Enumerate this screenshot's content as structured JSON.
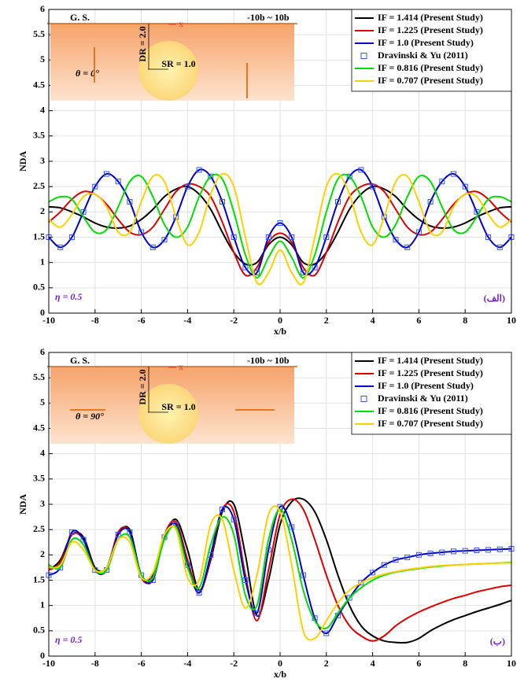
{
  "chart_data": [
    {
      "type": "line",
      "xlabel": "x/b",
      "ylabel": "NDA",
      "annotation": "η = 0.5",
      "panel_label": "(الف)",
      "inset": {
        "ground": "G. S.",
        "range": "-10b ~ 10b",
        "depth": "DR = 2.0",
        "radius": "SR = 1.0",
        "angle": "θ = 0°",
        "axis": "x"
      },
      "xlim": [
        -10,
        10
      ],
      "ylim": [
        0,
        6
      ],
      "xticks": [
        -10,
        -8,
        -6,
        -4,
        -2,
        0,
        2,
        4,
        6,
        8,
        10
      ],
      "yticks": [
        0,
        0.5,
        1,
        1.5,
        2,
        2.5,
        3,
        3.5,
        4,
        4.5,
        5,
        5.5,
        6
      ],
      "grid": true,
      "legend": "upper right",
      "x": [
        -10,
        -9.5,
        -9,
        -8.5,
        -8,
        -7.5,
        -7,
        -6.5,
        -6,
        -5.5,
        -5,
        -4.5,
        -4,
        -3.5,
        -3,
        -2.5,
        -2,
        -1.5,
        -1,
        -0.5,
        0,
        0.5,
        1,
        1.5,
        2,
        2.5,
        3,
        3.5,
        4,
        4.5,
        5,
        5.5,
        6,
        6.5,
        7,
        7.5,
        8,
        8.5,
        9,
        9.5,
        10
      ],
      "series": [
        {
          "name": "IF = 1.414 (Present Study)",
          "color": "#000000",
          "style": "line",
          "values": [
            2.1,
            2.08,
            2.0,
            1.9,
            1.78,
            1.7,
            1.68,
            1.72,
            1.85,
            2.05,
            2.3,
            2.45,
            2.5,
            2.35,
            2.05,
            1.6,
            1.2,
            0.97,
            1.0,
            1.35,
            1.5,
            1.35,
            1.0,
            0.97,
            1.2,
            1.6,
            2.05,
            2.35,
            2.5,
            2.45,
            2.3,
            2.05,
            1.85,
            1.72,
            1.68,
            1.7,
            1.78,
            1.9,
            2.0,
            2.08,
            2.1
          ]
        },
        {
          "name": "IF = 1.225 (Present Study)",
          "color": "#e00000",
          "style": "line",
          "values": [
            1.8,
            2.0,
            2.25,
            2.4,
            2.35,
            2.15,
            1.85,
            1.6,
            1.55,
            1.7,
            2.05,
            2.4,
            2.55,
            2.5,
            2.3,
            1.8,
            1.2,
            0.75,
            0.9,
            1.4,
            1.58,
            1.4,
            0.9,
            0.75,
            1.2,
            1.8,
            2.3,
            2.5,
            2.55,
            2.4,
            2.05,
            1.7,
            1.55,
            1.6,
            1.85,
            2.15,
            2.35,
            2.4,
            2.25,
            2.0,
            1.8
          ]
        },
        {
          "name": "IF = 1.0 (Present Study)",
          "color": "#0000cc",
          "style": "line",
          "values": [
            1.5,
            1.3,
            1.5,
            2.0,
            2.5,
            2.75,
            2.6,
            2.2,
            1.6,
            1.3,
            1.45,
            1.9,
            2.5,
            2.83,
            2.7,
            2.2,
            1.5,
            0.9,
            0.8,
            1.5,
            1.78,
            1.5,
            0.8,
            0.9,
            1.5,
            2.2,
            2.7,
            2.83,
            2.5,
            1.9,
            1.45,
            1.3,
            1.6,
            2.2,
            2.6,
            2.75,
            2.5,
            2.0,
            1.5,
            1.3,
            1.5
          ]
        },
        {
          "name": "Dravinski & Yu (2011)",
          "color": "#3355ff",
          "style": "square",
          "values": [
            1.5,
            1.3,
            1.5,
            2.0,
            2.5,
            2.75,
            2.6,
            2.2,
            1.6,
            1.3,
            1.45,
            1.9,
            2.5,
            2.83,
            2.7,
            2.2,
            1.5,
            0.9,
            0.8,
            1.5,
            1.78,
            1.5,
            0.8,
            0.9,
            1.5,
            2.2,
            2.7,
            2.83,
            2.5,
            1.9,
            1.45,
            1.3,
            1.6,
            2.2,
            2.6,
            2.75,
            2.5,
            2.0,
            1.5,
            1.3,
            1.5
          ]
        },
        {
          "name": "IF = 0.816 (Present Study)",
          "color": "#00e000",
          "style": "line",
          "values": [
            2.2,
            2.3,
            2.25,
            1.9,
            1.6,
            1.65,
            2.1,
            2.6,
            2.7,
            2.3,
            1.75,
            1.5,
            1.7,
            2.3,
            2.7,
            2.65,
            2.0,
            1.15,
            0.7,
            1.1,
            1.42,
            1.1,
            0.7,
            1.15,
            2.0,
            2.65,
            2.7,
            2.3,
            1.7,
            1.5,
            1.75,
            2.3,
            2.7,
            2.6,
            2.1,
            1.65,
            1.6,
            1.9,
            2.25,
            2.3,
            2.2
          ]
        },
        {
          "name": "IF = 0.707 (Present Study)",
          "color": "#ffd000",
          "style": "line",
          "values": [
            1.85,
            1.7,
            1.95,
            2.3,
            2.35,
            2.1,
            1.6,
            1.6,
            2.2,
            2.7,
            2.6,
            1.9,
            1.35,
            1.6,
            2.35,
            2.75,
            2.5,
            1.5,
            0.6,
            0.8,
            1.25,
            0.8,
            0.6,
            1.5,
            2.5,
            2.75,
            2.35,
            1.6,
            1.35,
            1.9,
            2.6,
            2.7,
            2.2,
            1.6,
            1.6,
            2.1,
            2.35,
            2.3,
            1.95,
            1.7,
            1.85
          ]
        }
      ]
    },
    {
      "type": "line",
      "xlabel": "x/b",
      "ylabel": "NDA",
      "annotation": "η = 0.5",
      "panel_label": "(ب)",
      "inset": {
        "ground": "G. S.",
        "range": "-10b ~ 10b",
        "depth": "DR = 2.0",
        "radius": "SR = 1.0",
        "angle": "θ = 90°",
        "axis": "x"
      },
      "xlim": [
        -10,
        10
      ],
      "ylim": [
        0,
        6
      ],
      "xticks": [
        -10,
        -8,
        -6,
        -4,
        -2,
        0,
        2,
        4,
        6,
        8,
        10
      ],
      "yticks": [
        0,
        0.5,
        1,
        1.5,
        2,
        2.5,
        3,
        3.5,
        4,
        4.5,
        5,
        5.5,
        6
      ],
      "grid": true,
      "legend": "upper right",
      "x": [
        -10,
        -9.5,
        -9,
        -8.5,
        -8,
        -7.5,
        -7,
        -6.5,
        -6,
        -5.5,
        -5,
        -4.5,
        -4,
        -3.5,
        -3,
        -2.5,
        -2,
        -1.5,
        -1,
        -0.5,
        0,
        0.5,
        1,
        1.5,
        2,
        2.5,
        3,
        3.5,
        4,
        4.5,
        5,
        5.5,
        6,
        6.5,
        7,
        7.5,
        8,
        8.5,
        9,
        9.5,
        10
      ],
      "series": [
        {
          "name": "IF = 1.414 (Present Study)",
          "color": "#000000",
          "style": "line",
          "values": [
            1.7,
            1.9,
            2.4,
            2.35,
            1.75,
            1.75,
            2.4,
            2.5,
            1.6,
            1.6,
            2.35,
            2.7,
            2.1,
            1.3,
            1.9,
            2.85,
            3.0,
            2.0,
            0.8,
            1.5,
            2.6,
            3.05,
            3.1,
            2.85,
            2.3,
            1.6,
            1.0,
            0.6,
            0.4,
            0.3,
            0.27,
            0.27,
            0.35,
            0.5,
            0.62,
            0.72,
            0.8,
            0.88,
            0.95,
            1.02,
            1.1
          ]
        },
        {
          "name": "IF = 1.225 (Present Study)",
          "color": "#e00000",
          "style": "line",
          "values": [
            1.7,
            1.85,
            2.4,
            2.3,
            1.7,
            1.7,
            2.45,
            2.45,
            1.55,
            1.55,
            2.4,
            2.65,
            1.9,
            1.25,
            1.95,
            2.9,
            2.85,
            1.6,
            0.7,
            1.7,
            2.8,
            3.1,
            2.9,
            2.3,
            1.6,
            1.0,
            0.6,
            0.4,
            0.3,
            0.4,
            0.6,
            0.75,
            0.87,
            0.97,
            1.06,
            1.14,
            1.2,
            1.27,
            1.32,
            1.37,
            1.4
          ]
        },
        {
          "name": "IF = 1.0 (Present Study)",
          "color": "#0000cc",
          "style": "line",
          "values": [
            1.6,
            1.75,
            2.45,
            2.3,
            1.7,
            1.7,
            2.4,
            2.45,
            1.6,
            1.5,
            2.35,
            2.6,
            1.8,
            1.25,
            2.0,
            2.9,
            2.7,
            1.5,
            0.85,
            2.1,
            2.95,
            2.55,
            1.6,
            0.75,
            0.45,
            0.8,
            1.15,
            1.45,
            1.65,
            1.8,
            1.9,
            1.95,
            2.0,
            2.03,
            2.05,
            2.07,
            2.08,
            2.09,
            2.1,
            2.11,
            2.12
          ]
        },
        {
          "name": "Dravinski & Yu (2011)",
          "color": "#3355ff",
          "style": "square",
          "values": [
            1.6,
            1.75,
            2.45,
            2.3,
            1.7,
            1.7,
            2.4,
            2.45,
            1.6,
            1.5,
            2.35,
            2.6,
            1.8,
            1.25,
            2.0,
            2.9,
            2.7,
            1.5,
            0.85,
            2.1,
            2.95,
            2.55,
            1.6,
            0.75,
            0.45,
            0.8,
            1.15,
            1.45,
            1.65,
            1.8,
            1.9,
            1.95,
            2.0,
            2.03,
            2.05,
            2.07,
            2.08,
            2.09,
            2.1,
            2.11,
            2.12
          ]
        },
        {
          "name": "IF = 0.816 (Present Study)",
          "color": "#00e000",
          "style": "line",
          "values": [
            1.8,
            1.75,
            2.3,
            2.2,
            1.7,
            1.7,
            2.3,
            2.35,
            1.6,
            1.55,
            2.3,
            2.55,
            1.75,
            1.35,
            2.2,
            2.75,
            2.4,
            1.2,
            1.0,
            2.3,
            2.9,
            2.3,
            1.3,
            0.7,
            0.55,
            0.85,
            1.15,
            1.35,
            1.5,
            1.6,
            1.66,
            1.7,
            1.73,
            1.76,
            1.78,
            1.8,
            1.81,
            1.82,
            1.83,
            1.84,
            1.85
          ]
        },
        {
          "name": "IF = 0.707 (Present Study)",
          "color": "#ffd000",
          "style": "line",
          "values": [
            1.75,
            1.8,
            2.25,
            2.1,
            1.7,
            1.75,
            2.3,
            2.25,
            1.55,
            1.65,
            2.4,
            2.5,
            1.55,
            1.5,
            2.6,
            2.7,
            1.7,
            0.95,
            1.6,
            2.8,
            2.85,
            1.8,
            0.5,
            0.35,
            0.7,
            1.05,
            1.3,
            1.45,
            1.55,
            1.62,
            1.67,
            1.71,
            1.74,
            1.77,
            1.79,
            1.8,
            1.81,
            1.82,
            1.83,
            1.84,
            1.84
          ]
        }
      ]
    }
  ]
}
